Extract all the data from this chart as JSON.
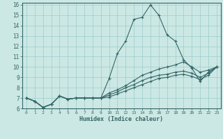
{
  "xlabel": "Humidex (Indice chaleur)",
  "background_color": "#cce8e4",
  "grid_color": "#99cccc",
  "line_color": "#336666",
  "xlim": [
    -0.5,
    23.5
  ],
  "ylim": [
    6,
    16.2
  ],
  "xticks": [
    0,
    1,
    2,
    3,
    4,
    5,
    6,
    7,
    8,
    9,
    10,
    11,
    12,
    13,
    14,
    15,
    16,
    17,
    18,
    19,
    20,
    21,
    22,
    23
  ],
  "yticks": [
    6,
    7,
    8,
    9,
    10,
    11,
    12,
    13,
    14,
    15,
    16
  ],
  "lines": [
    {
      "x": [
        0,
        1,
        2,
        3,
        4,
        5,
        6,
        7,
        8,
        9,
        10,
        11,
        12,
        13,
        14,
        15,
        16,
        17,
        18,
        19,
        20,
        21,
        22,
        23
      ],
      "y": [
        7.0,
        6.7,
        6.1,
        6.4,
        7.2,
        6.9,
        7.0,
        7.0,
        7.0,
        7.0,
        8.9,
        11.3,
        12.5,
        14.6,
        14.8,
        16.0,
        15.0,
        13.1,
        12.5,
        10.7,
        9.9,
        8.6,
        9.5,
        10.0
      ]
    },
    {
      "x": [
        0,
        1,
        2,
        3,
        4,
        5,
        6,
        7,
        8,
        9,
        10,
        11,
        12,
        13,
        14,
        15,
        16,
        17,
        18,
        19,
        20,
        21,
        22,
        23
      ],
      "y": [
        7.0,
        6.7,
        6.1,
        6.4,
        7.2,
        6.9,
        7.0,
        7.0,
        7.0,
        7.0,
        7.5,
        7.8,
        8.2,
        8.7,
        9.2,
        9.5,
        9.8,
        10.0,
        10.2,
        10.5,
        10.0,
        9.5,
        9.7,
        10.0
      ]
    },
    {
      "x": [
        0,
        1,
        2,
        3,
        4,
        5,
        6,
        7,
        8,
        9,
        10,
        11,
        12,
        13,
        14,
        15,
        16,
        17,
        18,
        19,
        20,
        21,
        22,
        23
      ],
      "y": [
        7.0,
        6.7,
        6.1,
        6.4,
        7.2,
        6.9,
        7.0,
        7.0,
        7.0,
        7.0,
        7.3,
        7.6,
        8.0,
        8.3,
        8.7,
        9.0,
        9.2,
        9.3,
        9.5,
        9.6,
        9.4,
        9.0,
        9.4,
        10.0
      ]
    },
    {
      "x": [
        0,
        1,
        2,
        3,
        4,
        5,
        6,
        7,
        8,
        9,
        10,
        11,
        12,
        13,
        14,
        15,
        16,
        17,
        18,
        19,
        20,
        21,
        22,
        23
      ],
      "y": [
        7.0,
        6.7,
        6.1,
        6.4,
        7.2,
        6.9,
        7.0,
        7.0,
        7.0,
        7.0,
        7.1,
        7.4,
        7.7,
        8.0,
        8.3,
        8.6,
        8.9,
        9.0,
        9.2,
        9.3,
        9.1,
        8.8,
        9.2,
        10.0
      ]
    }
  ]
}
